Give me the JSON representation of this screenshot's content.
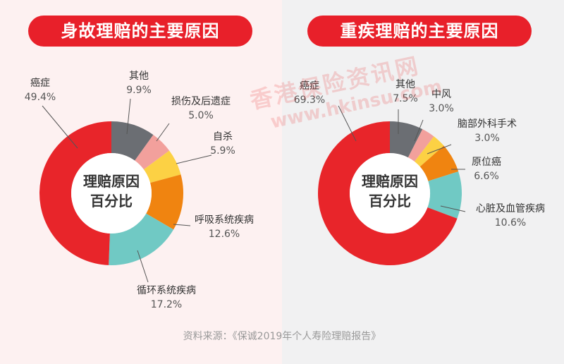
{
  "source": "资料来源：《保诚2019年个人寿险理赔报告》",
  "watermark": {
    "line1": "香港保险资讯网",
    "line2": "www.hkinsu.com"
  },
  "colors": {
    "red": "#e8252a",
    "gray": "#6b6e73",
    "pink": "#f2a09c",
    "yellow": "#fcd144",
    "orange": "#f08410",
    "teal": "#70c9c4",
    "brand": "#e8202a"
  },
  "chart_data": [
    {
      "type": "pie",
      "title": "身故理赔的主要原因",
      "center_label": [
        "理赔原因",
        "百分比"
      ],
      "slices": [
        {
          "name": "其他",
          "value": 9.9,
          "label": "9.9%",
          "color": "#6b6e73"
        },
        {
          "name": "损伤及后遗症",
          "value": 5.0,
          "label": "5.0%",
          "color": "#f2a09c"
        },
        {
          "name": "自杀",
          "value": 5.9,
          "label": "5.9%",
          "color": "#fcd144"
        },
        {
          "name": "呼吸系统疾病",
          "value": 12.6,
          "label": "12.6%",
          "color": "#f08410"
        },
        {
          "name": "循环系统疾病",
          "value": 17.2,
          "label": "17.2%",
          "color": "#70c9c4"
        },
        {
          "name": "癌症",
          "value": 49.4,
          "label": "49.4%",
          "color": "#e8252a"
        }
      ]
    },
    {
      "type": "pie",
      "title": "重疾理赔的主要原因",
      "center_label": [
        "理赔原因",
        "百分比"
      ],
      "slices": [
        {
          "name": "其他",
          "value": 7.5,
          "label": "7.5%",
          "color": "#6b6e73"
        },
        {
          "name": "中风",
          "value": 3.0,
          "label": "3.0%",
          "color": "#f2a09c"
        },
        {
          "name": "脑部外科手术",
          "value": 3.0,
          "label": "3.0%",
          "color": "#fcd144"
        },
        {
          "name": "原位癌",
          "value": 6.6,
          "label": "6.6%",
          "color": "#f08410"
        },
        {
          "name": "心脏及血管疾病",
          "value": 10.6,
          "label": "10.6%",
          "color": "#70c9c4"
        },
        {
          "name": "癌症",
          "value": 69.3,
          "label": "69.3%",
          "color": "#e8252a"
        }
      ]
    }
  ]
}
